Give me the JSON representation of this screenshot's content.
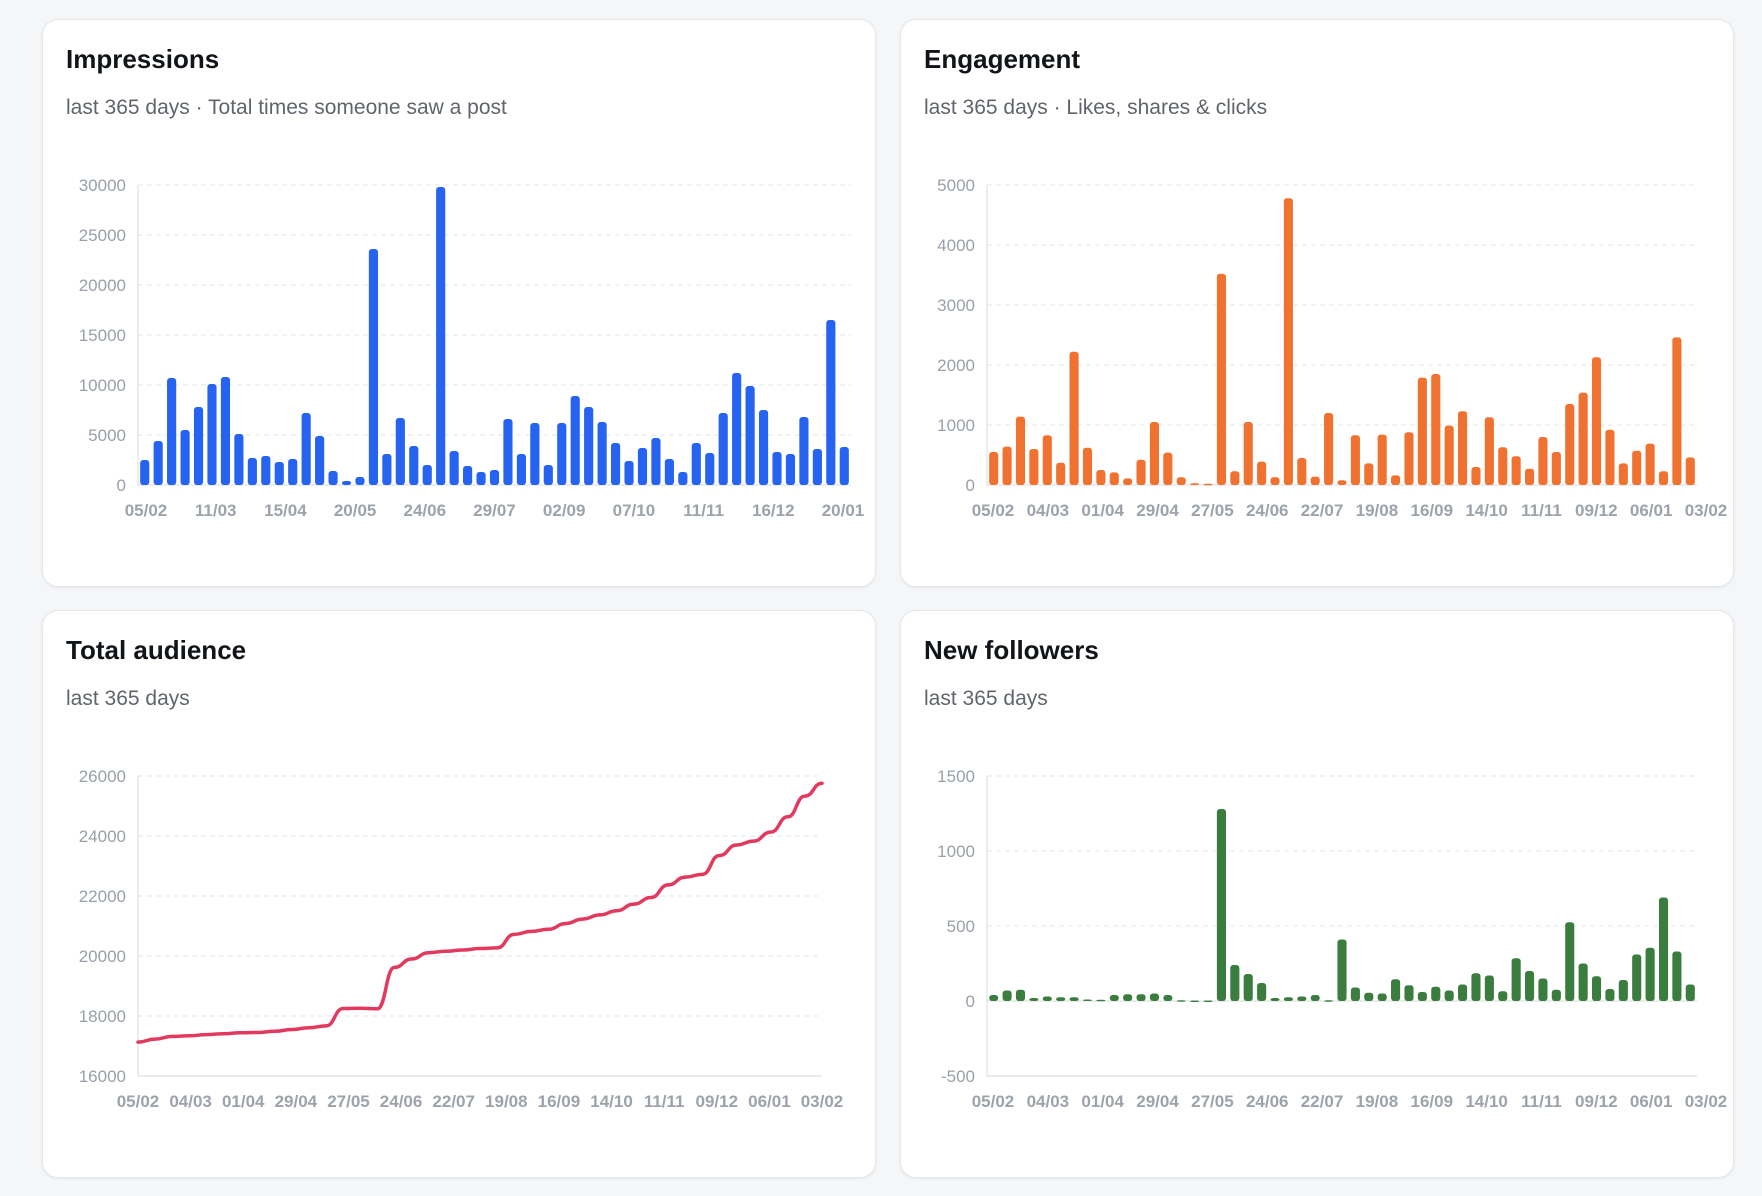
{
  "cards": [
    {
      "title": "Impressions",
      "subtitle": "last 365 days · Total times someone saw a post",
      "color": "#2563f0"
    },
    {
      "title": "Engagement",
      "subtitle": "last 365 days · Likes, shares & clicks",
      "color": "#f07230"
    },
    {
      "title": "Total audience",
      "subtitle": "last 365 days",
      "color": "#e23a5f"
    },
    {
      "title": "New followers",
      "subtitle": "last 365 days",
      "color": "#3a7d3e"
    }
  ],
  "chart_data": [
    {
      "type": "bar",
      "title": "Impressions",
      "ylim": [
        0,
        30000
      ],
      "yticks": [
        0,
        5000,
        10000,
        15000,
        20000,
        25000,
        30000
      ],
      "grid": true,
      "xtick_labels": [
        "05/02",
        "11/03",
        "15/04",
        "20/05",
        "24/06",
        "29/07",
        "02/09",
        "07/10",
        "11/11",
        "16/12",
        "20/01"
      ],
      "values": [
        2500,
        4400,
        10700,
        5500,
        7800,
        10100,
        10800,
        5100,
        2700,
        2900,
        2300,
        2600,
        7200,
        4900,
        1400,
        400,
        800,
        23600,
        3100,
        6700,
        3900,
        2000,
        29800,
        3400,
        1900,
        1300,
        1500,
        6600,
        3100,
        6200,
        2000,
        6200,
        8900,
        7800,
        6300,
        4200,
        2400,
        3700,
        4700,
        2600,
        1300,
        4200,
        3200,
        7200,
        11200,
        9900,
        7500,
        3300,
        3100,
        6800,
        3600,
        16500,
        3800
      ]
    },
    {
      "type": "bar",
      "title": "Engagement",
      "ylim": [
        0,
        5000
      ],
      "yticks": [
        0,
        1000,
        2000,
        3000,
        4000,
        5000
      ],
      "grid": true,
      "xtick_labels": [
        "05/02",
        "04/03",
        "01/04",
        "29/04",
        "27/05",
        "24/06",
        "22/07",
        "19/08",
        "16/09",
        "14/10",
        "11/11",
        "09/12",
        "06/01",
        "03/02"
      ],
      "values": [
        550,
        640,
        1140,
        600,
        830,
        370,
        2220,
        620,
        250,
        210,
        110,
        420,
        1050,
        540,
        130,
        30,
        20,
        3520,
        230,
        1050,
        390,
        130,
        4780,
        450,
        140,
        1200,
        80,
        830,
        360,
        840,
        160,
        880,
        1790,
        1850,
        990,
        1230,
        300,
        1130,
        630,
        480,
        270,
        800,
        550,
        1350,
        1540,
        2130,
        920,
        360,
        570,
        690,
        230,
        2460,
        460
      ]
    },
    {
      "type": "line",
      "title": "Total audience",
      "ylim": [
        16000,
        26000
      ],
      "yticks": [
        16000,
        18000,
        20000,
        22000,
        24000,
        26000
      ],
      "grid": true,
      "xtick_labels": [
        "05/02",
        "04/03",
        "01/04",
        "29/04",
        "27/05",
        "24/06",
        "22/07",
        "19/08",
        "16/09",
        "14/10",
        "11/11",
        "09/12",
        "06/01",
        "03/02"
      ],
      "values": [
        17130,
        17230,
        17320,
        17340,
        17380,
        17410,
        17440,
        17450,
        17490,
        17550,
        17610,
        17670,
        18250,
        18260,
        18240,
        19620,
        19900,
        20110,
        20160,
        20200,
        20250,
        20270,
        20720,
        20820,
        20890,
        21080,
        21230,
        21370,
        21510,
        21730,
        21950,
        22370,
        22630,
        22720,
        23350,
        23700,
        23830,
        24130,
        24640,
        25330,
        25760
      ]
    },
    {
      "type": "bar",
      "title": "New followers",
      "ylim": [
        -500,
        1500
      ],
      "yticks": [
        -500,
        0,
        500,
        1000,
        1500
      ],
      "grid": true,
      "xtick_labels": [
        "05/02",
        "04/03",
        "01/04",
        "29/04",
        "27/05",
        "24/06",
        "22/07",
        "19/08",
        "16/09",
        "14/10",
        "11/11",
        "09/12",
        "06/01",
        "03/02"
      ],
      "values": [
        40,
        70,
        75,
        20,
        30,
        25,
        25,
        10,
        8,
        40,
        45,
        45,
        50,
        40,
        5,
        3,
        3,
        1280,
        240,
        180,
        120,
        20,
        25,
        30,
        40,
        5,
        410,
        90,
        55,
        50,
        145,
        105,
        60,
        95,
        70,
        110,
        185,
        170,
        65,
        285,
        200,
        150,
        75,
        525,
        250,
        165,
        80,
        140,
        310,
        355,
        690,
        330,
        110
      ]
    }
  ]
}
